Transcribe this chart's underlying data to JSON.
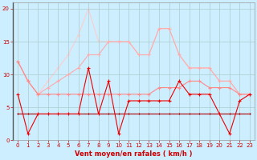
{
  "title": "",
  "xlabel": "Vent moyen/en rafales ( km/h )",
  "ylabel": "",
  "bg_color": "#cceeff",
  "grid_color": "#aacccc",
  "xlim": [
    -0.5,
    23.5
  ],
  "ylim": [
    0,
    21
  ],
  "yticks": [
    0,
    5,
    10,
    15,
    20
  ],
  "xticks": [
    0,
    1,
    2,
    3,
    4,
    5,
    6,
    7,
    8,
    9,
    10,
    11,
    12,
    13,
    14,
    15,
    16,
    17,
    18,
    19,
    20,
    21,
    22,
    23
  ],
  "lines": [
    {
      "y": [
        7,
        1,
        4,
        4,
        4,
        4,
        4,
        11,
        4,
        9,
        1,
        6,
        6,
        6,
        6,
        6,
        9,
        7,
        7,
        7,
        4,
        1,
        6,
        7
      ],
      "color": "#ee0000",
      "lw": 0.8,
      "marker": "+",
      "ms": 3,
      "zorder": 5
    },
    {
      "y": [
        4,
        4,
        4,
        4,
        4,
        4,
        4,
        4,
        4,
        4,
        4,
        4,
        4,
        4,
        4,
        4,
        4,
        4,
        4,
        4,
        4,
        4,
        4,
        4
      ],
      "color": "#aa0000",
      "lw": 0.8,
      "marker": "+",
      "ms": 2,
      "zorder": 4
    },
    {
      "y": [
        12,
        9,
        7,
        7,
        7,
        7,
        7,
        7,
        7,
        7,
        7,
        7,
        7,
        7,
        8,
        8,
        8,
        9,
        9,
        8,
        8,
        8,
        7,
        7
      ],
      "color": "#ff8888",
      "lw": 0.8,
      "marker": "+",
      "ms": 3,
      "zorder": 3
    },
    {
      "y": [
        12,
        9,
        7,
        8,
        9,
        10,
        11,
        13,
        13,
        15,
        15,
        15,
        13,
        13,
        17,
        17,
        13,
        11,
        11,
        11,
        9,
        9,
        7,
        7
      ],
      "color": "#ffaaaa",
      "lw": 0.8,
      "marker": "+",
      "ms": 3,
      "zorder": 2
    },
    {
      "y": [
        12,
        9,
        7,
        9,
        11,
        13,
        16,
        20,
        15,
        15,
        15,
        15,
        13,
        13,
        17,
        17,
        13,
        11,
        11,
        11,
        9,
        9,
        7,
        7
      ],
      "color": "#ffcccc",
      "lw": 0.8,
      "marker": "+",
      "ms": 3,
      "zorder": 1
    }
  ],
  "xlabel_fontsize": 6,
  "xlabel_color": "#cc0000",
  "tick_labelsize": 5,
  "tick_color": "#cc0000"
}
